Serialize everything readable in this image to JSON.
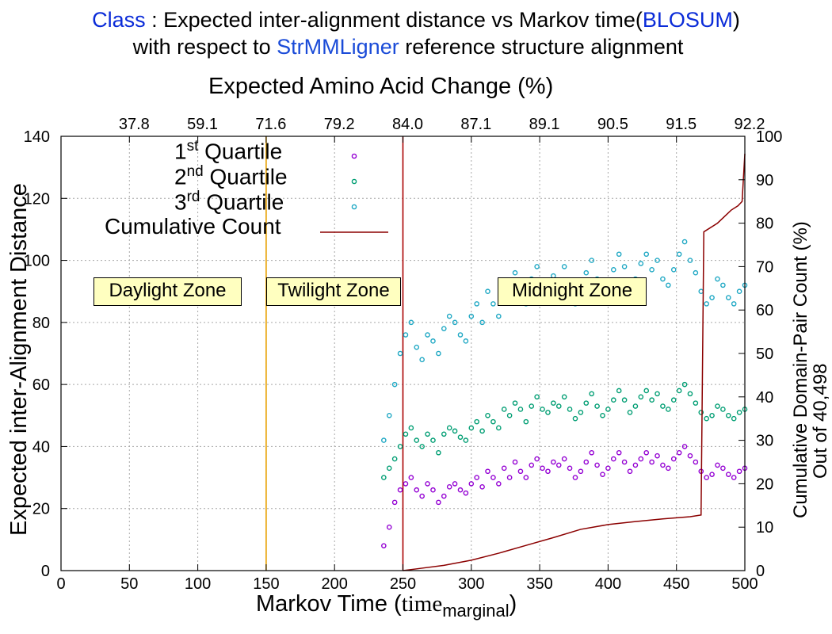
{
  "title": {
    "line1_prefix": "Class",
    "line1_mid": " : Expected inter-alignment distance vs Markov time(",
    "line1_blosum": "BLOSUM",
    "line1_suffix": ")",
    "line2_prefix": "with respect to ",
    "line2_tool": "StrMMLigner",
    "line2_suffix": " reference structure alignment",
    "colors": {
      "keyword": "#0a2bd8",
      "tool": "#1a4bd8"
    }
  },
  "axes": {
    "top_title": "Expected Amino Acid Change (%)",
    "left_title": "Expected inter-Alignment Distance",
    "right_title_1": "Cumulative Domain-Pair Count (%)",
    "right_title_2": "Out of 40,498",
    "bottom_title_main": "Markov Time (",
    "bottom_title_serif": "time",
    "bottom_title_sub": "marginal",
    "bottom_title_close": ")"
  },
  "legend": {
    "q1_base": "1",
    "q1_sup": "st",
    "q1_rest": " Quartile",
    "q2_base": "2",
    "q2_sup": "nd",
    "q2_rest": " Quartile",
    "q3_base": "3",
    "q3_sup": "rd",
    "q3_rest": " Quartile",
    "cumulative": "Cumulative Count"
  },
  "zones": {
    "daylight": "Daylight Zone",
    "twilight": "Twilight Zone",
    "midnight": "Midnight Zone"
  },
  "chart_data": {
    "type": "scatter",
    "x_label": "Markov Time (time marginal)",
    "xlim": [
      0,
      500
    ],
    "x_ticks": [
      0,
      50,
      100,
      150,
      200,
      250,
      300,
      350,
      400,
      450,
      500
    ],
    "ylim_left": [
      0,
      140
    ],
    "y_ticks_left": [
      0,
      20,
      40,
      60,
      80,
      100,
      120,
      140
    ],
    "ylim_right": [
      0,
      100
    ],
    "y_ticks_right": [
      0,
      10,
      20,
      30,
      40,
      50,
      60,
      70,
      80,
      90,
      100
    ],
    "top_ticks": [
      {
        "x": 50,
        "label": "37.8"
      },
      {
        "x": 100,
        "label": "59.1"
      },
      {
        "x": 150,
        "label": "71.6"
      },
      {
        "x": 200,
        "label": "79.2"
      },
      {
        "x": 250,
        "label": "84.0"
      },
      {
        "x": 300,
        "label": "87.1"
      },
      {
        "x": 350,
        "label": "89.1"
      },
      {
        "x": 400,
        "label": "90.5"
      },
      {
        "x": 450,
        "label": "91.5"
      },
      {
        "x": 500,
        "label": "92.2"
      }
    ],
    "grid": true,
    "legend_position": "top-left",
    "zone_boundaries": [
      150,
      250
    ],
    "zone_boundary_colors": [
      "#e8a000",
      "#aa0000"
    ],
    "series": [
      {
        "name": "1st Quartile",
        "color": "#9400d3",
        "axis": "left",
        "x": [
          236,
          240,
          244,
          248,
          252,
          256,
          260,
          264,
          268,
          272,
          276,
          280,
          284,
          288,
          292,
          296,
          300,
          304,
          308,
          312,
          316,
          320,
          324,
          328,
          332,
          336,
          340,
          344,
          348,
          352,
          356,
          360,
          364,
          368,
          372,
          376,
          380,
          384,
          388,
          392,
          396,
          400,
          404,
          408,
          412,
          416,
          420,
          424,
          428,
          432,
          436,
          440,
          444,
          448,
          452,
          456,
          460,
          464,
          468,
          472,
          476,
          480,
          484,
          488,
          492,
          496,
          500
        ],
        "y": [
          8,
          14,
          22,
          26,
          28,
          30,
          26,
          24,
          28,
          26,
          22,
          24,
          27,
          28,
          26,
          25,
          28,
          30,
          27,
          32,
          30,
          28,
          33,
          30,
          35,
          32,
          30,
          34,
          36,
          33,
          32,
          35,
          34,
          36,
          33,
          30,
          32,
          35,
          38,
          34,
          31,
          33,
          36,
          38,
          35,
          32,
          34,
          36,
          38,
          35,
          37,
          34,
          33,
          36,
          38,
          40,
          37,
          35,
          32,
          30,
          31,
          34,
          33,
          31,
          30,
          32,
          33
        ]
      },
      {
        "name": "2nd Quartile",
        "color": "#009e73",
        "axis": "left",
        "x": [
          236,
          240,
          244,
          248,
          252,
          256,
          260,
          264,
          268,
          272,
          276,
          280,
          284,
          288,
          292,
          296,
          300,
          304,
          308,
          312,
          316,
          320,
          324,
          328,
          332,
          336,
          340,
          344,
          348,
          352,
          356,
          360,
          364,
          368,
          372,
          376,
          380,
          384,
          388,
          392,
          396,
          400,
          404,
          408,
          412,
          416,
          420,
          424,
          428,
          432,
          436,
          440,
          444,
          448,
          452,
          456,
          460,
          464,
          468,
          472,
          476,
          480,
          484,
          488,
          492,
          496,
          500
        ],
        "y": [
          30,
          33,
          36,
          40,
          44,
          46,
          42,
          40,
          44,
          42,
          38,
          44,
          46,
          45,
          43,
          42,
          46,
          48,
          45,
          50,
          48,
          46,
          52,
          50,
          54,
          52,
          48,
          53,
          56,
          52,
          51,
          54,
          53,
          56,
          52,
          49,
          51,
          54,
          57,
          53,
          50,
          52,
          55,
          58,
          55,
          51,
          53,
          56,
          58,
          55,
          57,
          53,
          52,
          55,
          58,
          60,
          57,
          54,
          51,
          49,
          50,
          53,
          52,
          50,
          49,
          51,
          52
        ]
      },
      {
        "name": "3rd Quartile",
        "color": "#1fa8c4",
        "axis": "left",
        "x": [
          236,
          240,
          244,
          248,
          252,
          256,
          260,
          264,
          268,
          272,
          276,
          280,
          284,
          288,
          292,
          296,
          300,
          304,
          308,
          312,
          316,
          320,
          324,
          328,
          332,
          336,
          340,
          344,
          348,
          352,
          356,
          360,
          364,
          368,
          372,
          376,
          380,
          384,
          388,
          392,
          396,
          400,
          404,
          408,
          412,
          416,
          420,
          424,
          428,
          432,
          436,
          440,
          444,
          448,
          452,
          456,
          460,
          464,
          468,
          472,
          476,
          480,
          484,
          488,
          492,
          496,
          500
        ],
        "y": [
          42,
          50,
          60,
          70,
          76,
          80,
          72,
          68,
          76,
          74,
          70,
          78,
          82,
          80,
          76,
          74,
          82,
          86,
          80,
          90,
          86,
          82,
          92,
          88,
          96,
          92,
          86,
          94,
          98,
          92,
          90,
          95,
          93,
          98,
          92,
          86,
          90,
          96,
          100,
          94,
          88,
          92,
          97,
          102,
          98,
          90,
          94,
          99,
          102,
          97,
          100,
          94,
          92,
          97,
          102,
          106,
          100,
          96,
          90,
          86,
          88,
          94,
          92,
          88,
          86,
          90,
          92
        ]
      },
      {
        "name": "Cumulative Count",
        "color": "#8b0000",
        "axis": "right",
        "type": "line",
        "x": [
          250,
          260,
          280,
          300,
          320,
          340,
          360,
          380,
          400,
          420,
          440,
          460,
          468,
          470,
          480,
          490,
          495,
          498,
          500
        ],
        "y": [
          0,
          0.4,
          1.2,
          2.4,
          4.0,
          5.8,
          7.6,
          9.5,
          10.6,
          11.3,
          11.9,
          12.4,
          12.8,
          78,
          80,
          83,
          84,
          85,
          96
        ]
      }
    ]
  }
}
